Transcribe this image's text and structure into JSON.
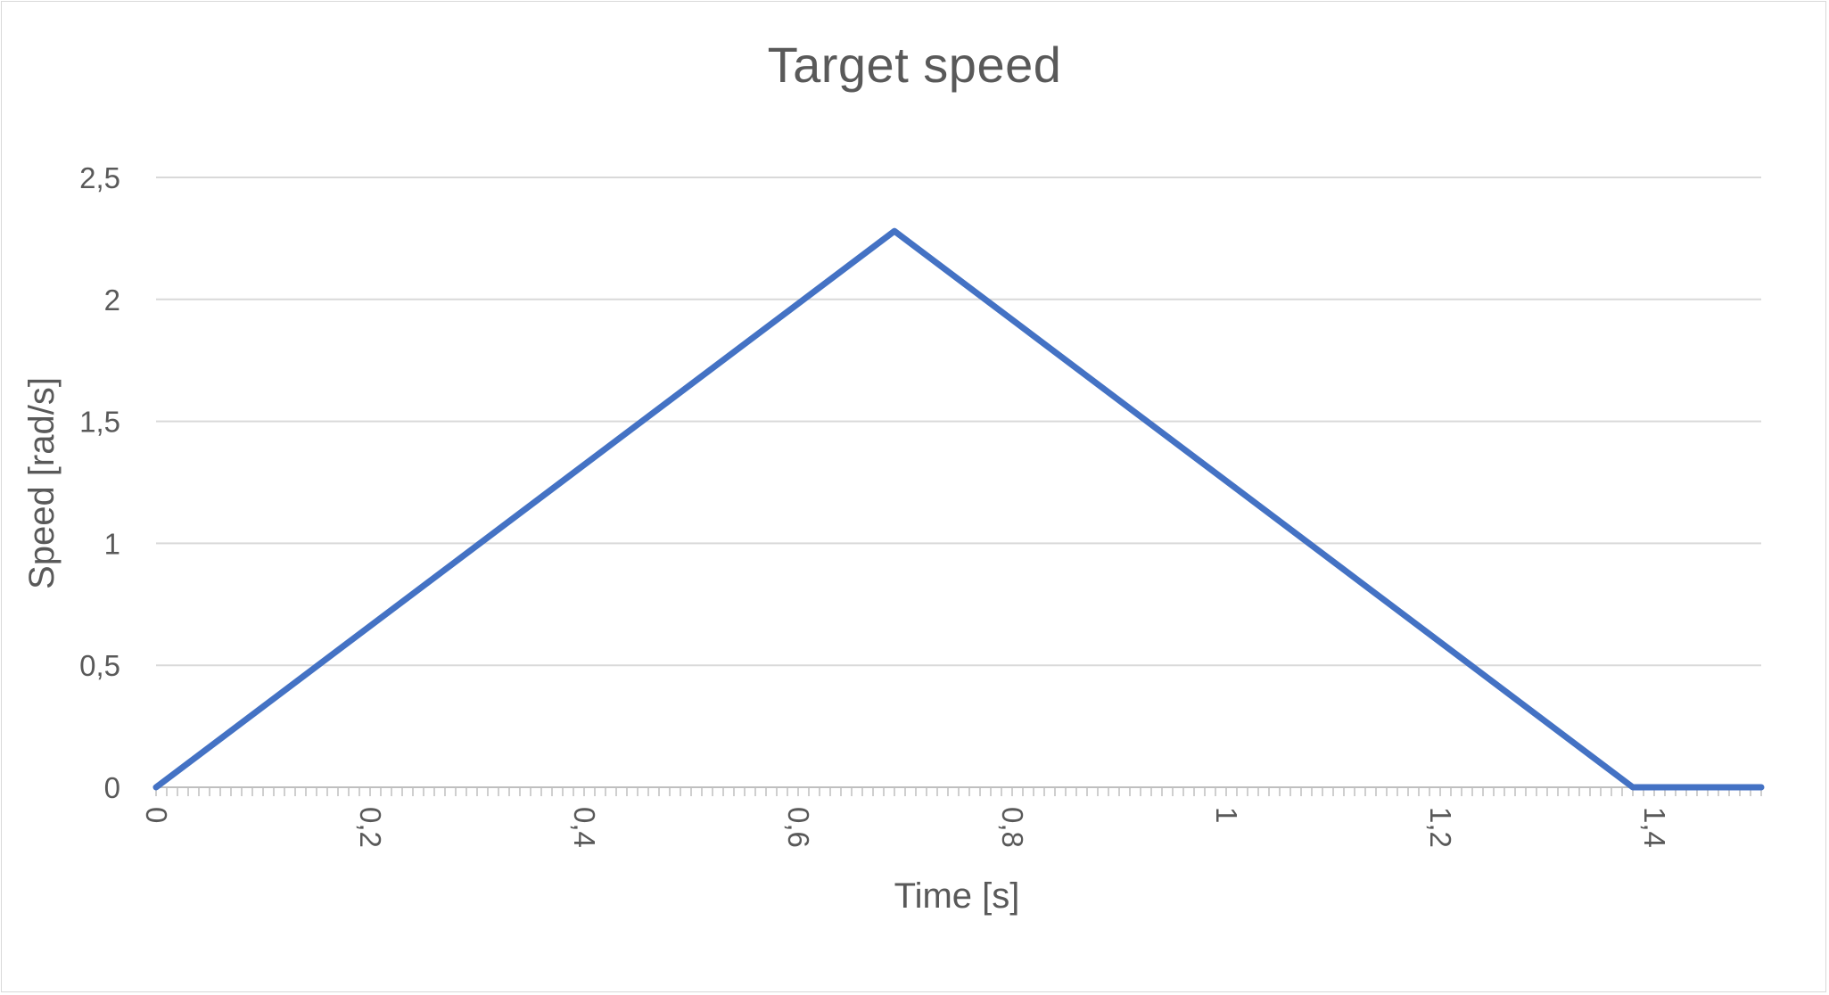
{
  "chart_data": {
    "type": "line",
    "title": "Target speed",
    "xlabel": "Time [s]",
    "ylabel": "Speed [rad/s]",
    "xlim": [
      0,
      1.5
    ],
    "ylim": [
      0,
      2.5
    ],
    "grid": "horizontal",
    "x_ticks": [
      {
        "value": 0,
        "label": "0"
      },
      {
        "value": 0.2,
        "label": "0,2"
      },
      {
        "value": 0.4,
        "label": "0,4"
      },
      {
        "value": 0.6,
        "label": "0,6"
      },
      {
        "value": 0.8,
        "label": "0,8"
      },
      {
        "value": 1,
        "label": "1"
      },
      {
        "value": 1.2,
        "label": "1,2"
      },
      {
        "value": 1.4,
        "label": "1,4"
      }
    ],
    "y_ticks": [
      {
        "value": 0,
        "label": "0"
      },
      {
        "value": 0.5,
        "label": "0,5"
      },
      {
        "value": 1,
        "label": "1"
      },
      {
        "value": 1.5,
        "label": "1,5"
      },
      {
        "value": 2,
        "label": "2"
      },
      {
        "value": 2.5,
        "label": "2,5"
      }
    ],
    "series": [
      {
        "color": "#4472c4",
        "points": [
          {
            "x": 0,
            "y": 0
          },
          {
            "x": 0.69,
            "y": 2.28
          },
          {
            "x": 1.38,
            "y": 0
          },
          {
            "x": 1.5,
            "y": 0
          }
        ]
      }
    ],
    "minor_tick_step": 0.01
  }
}
